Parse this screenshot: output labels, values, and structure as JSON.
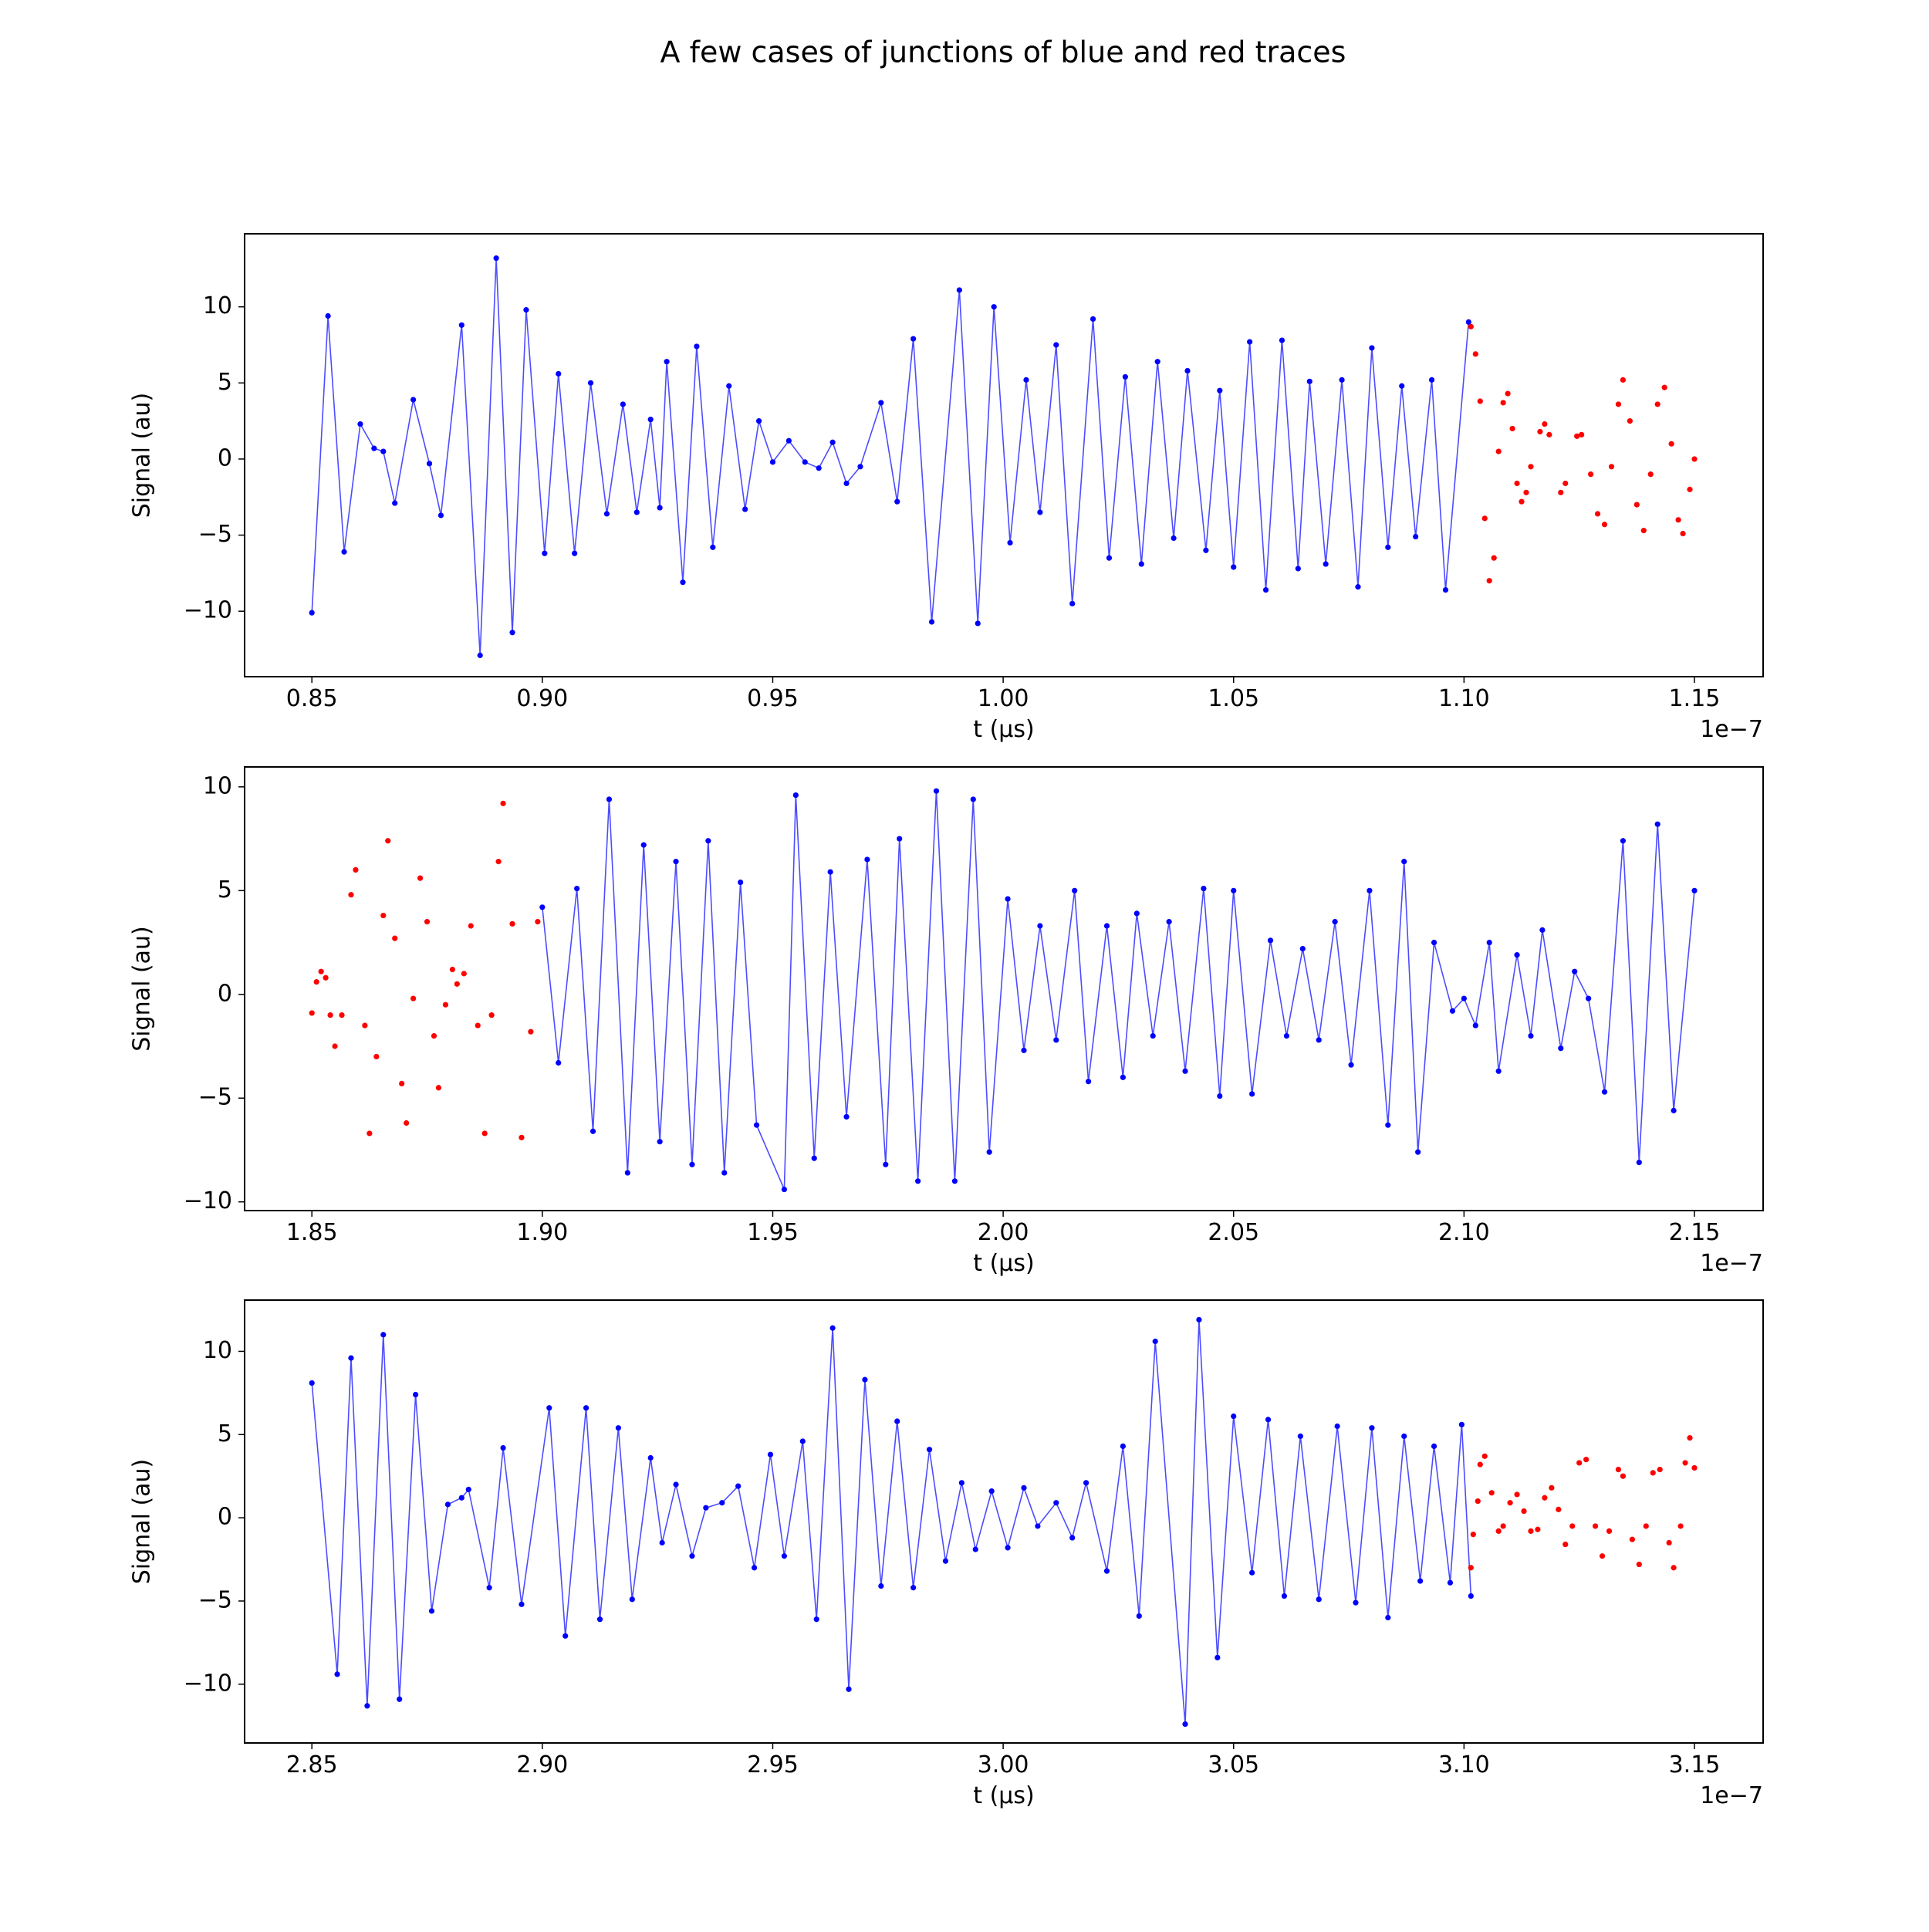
{
  "title": "A few cases of junctions of blue and red traces",
  "chart_data": [
    {
      "type": "line",
      "xlabel": "t (μs)",
      "ylabel": "Signal (au)",
      "x_offset_label": "1e−7",
      "xlim": [
        0.8354,
        1.1649
      ],
      "ylim": [
        -14.3,
        14.8
      ],
      "xticks": [
        0.85,
        {
          "value": 0.9,
          "label": "0.90"
        },
        0.95,
        {
          "value": 1,
          "label": "1.00"
        },
        1.05,
        {
          "value": 1.1,
          "label": "1.10"
        },
        1.15
      ],
      "yticks": [
        {
          "value": -10,
          "label": "−10"
        },
        {
          "value": -5,
          "label": "−5"
        },
        0,
        5,
        10
      ],
      "series": [
        {
          "color": "#0000ff",
          "mode": "lines+markers",
          "x": [
            0.85,
            0.8535,
            0.857,
            0.8605,
            0.8635,
            0.8655,
            0.868,
            0.872,
            0.8755,
            0.878,
            0.8825,
            0.8865,
            0.89,
            0.8935,
            0.8965,
            0.9005,
            0.9035,
            0.907,
            0.9105,
            0.914,
            0.9175,
            0.9205,
            0.9235,
            0.9255,
            0.927,
            0.9305,
            0.9335,
            0.937,
            0.9405,
            0.944,
            0.947,
            0.95,
            0.9535,
            0.957,
            0.96,
            0.963,
            0.966,
            0.969,
            0.9735,
            0.977,
            0.9805,
            0.9845,
            0.9905,
            0.9945,
            0.998,
            1.0015,
            1.005,
            1.008,
            1.0115,
            1.015,
            1.0195,
            1.023,
            1.0265,
            1.03,
            1.0335,
            1.037,
            1.04,
            1.044,
            1.047,
            1.05,
            1.0535,
            1.057,
            1.0605,
            1.064,
            1.0665,
            1.07,
            1.0735,
            1.077,
            1.08,
            1.0835,
            1.0865,
            1.0895,
            1.093,
            1.096,
            1.101
          ],
          "values": [
            -10.1,
            9.4,
            -6.1,
            2.3,
            0.7,
            0.5,
            -2.9,
            3.9,
            -0.3,
            -3.7,
            8.8,
            -12.9,
            13.2,
            -11.4,
            9.8,
            -6.2,
            5.6,
            -6.2,
            5.0,
            -3.6,
            3.6,
            -3.5,
            2.6,
            -3.2,
            6.4,
            -8.1,
            7.4,
            -5.8,
            4.8,
            -3.3,
            2.5,
            -0.2,
            1.2,
            -0.2,
            -0.6,
            1.1,
            -1.6,
            -0.5,
            3.7,
            -2.8,
            7.9,
            -10.7,
            11.1,
            -10.8,
            10.0,
            -5.5,
            5.2,
            -3.5,
            7.5,
            -9.5,
            9.2,
            -6.5,
            5.4,
            -6.9,
            6.4,
            -5.2,
            5.8,
            -6.0,
            4.5,
            -7.1,
            7.7,
            -8.6,
            7.8,
            -7.2,
            5.1,
            -6.9,
            5.2,
            -8.4,
            7.3,
            -5.8,
            4.8,
            -5.1,
            5.2,
            -8.6,
            9.0
          ]
        },
        {
          "color": "#ff0000",
          "mode": "markers",
          "x": [
            1.1015,
            1.1025,
            1.1035,
            1.1045,
            1.1055,
            1.1065,
            1.1075,
            1.1085,
            1.1095,
            1.1105,
            1.1115,
            1.1125,
            1.1135,
            1.1145,
            1.1165,
            1.1175,
            1.1185,
            1.121,
            1.122,
            1.1245,
            1.1255,
            1.1275,
            1.129,
            1.1305,
            1.132,
            1.1335,
            1.1345,
            1.136,
            1.1375,
            1.139,
            1.1405,
            1.142,
            1.1435,
            1.145,
            1.1465,
            1.1475,
            1.149,
            1.15
          ],
          "values": [
            8.7,
            6.9,
            3.8,
            -3.9,
            -8.0,
            -6.5,
            0.5,
            3.7,
            4.3,
            2.0,
            -1.6,
            -2.8,
            -2.2,
            -0.5,
            1.8,
            2.3,
            1.6,
            -2.2,
            -1.6,
            1.5,
            1.6,
            -1.0,
            -3.6,
            -4.3,
            -0.5,
            3.6,
            5.2,
            2.5,
            -3.0,
            -4.7,
            -1.0,
            3.6,
            4.7,
            1.0,
            -4.0,
            -4.9,
            -2.0,
            0.0
          ]
        }
      ]
    },
    {
      "type": "line",
      "xlabel": "t (μs)",
      "ylabel": "Signal (au)",
      "x_offset_label": "1e−7",
      "xlim": [
        1.8354,
        2.1649
      ],
      "ylim": [
        -10.42,
        10.96
      ],
      "xticks": [
        1.85,
        {
          "value": 1.9,
          "label": "1.90"
        },
        1.95,
        {
          "value": 2,
          "label": "2.00"
        },
        2.05,
        {
          "value": 2.1,
          "label": "2.10"
        },
        2.15
      ],
      "yticks": [
        {
          "value": -10,
          "label": "−10"
        },
        {
          "value": -5,
          "label": "−5"
        },
        0,
        5,
        10
      ],
      "series": [
        {
          "color": "#ff0000",
          "mode": "markers",
          "x": [
            1.85,
            1.851,
            1.852,
            1.853,
            1.854,
            1.855,
            1.8565,
            1.8585,
            1.8595,
            1.8615,
            1.8625,
            1.864,
            1.8655,
            1.8665,
            1.868,
            1.8695,
            1.8705,
            1.872,
            1.8735,
            1.875,
            1.8765,
            1.8775,
            1.879,
            1.8805,
            1.8815,
            1.883,
            1.8845,
            1.886,
            1.8875,
            1.889,
            1.8905,
            1.8915,
            1.8935,
            1.8955,
            1.8975,
            1.899
          ],
          "values": [
            -0.9,
            0.6,
            1.1,
            0.8,
            -1.0,
            -2.5,
            -1.0,
            4.8,
            6.0,
            -1.5,
            -6.7,
            -3.0,
            3.8,
            7.4,
            2.7,
            -4.3,
            -6.2,
            -0.2,
            5.6,
            3.5,
            -2.0,
            -4.5,
            -0.5,
            1.2,
            0.5,
            1.0,
            3.3,
            -1.5,
            -6.7,
            -1.0,
            6.4,
            9.2,
            3.4,
            -6.9,
            -1.8,
            3.5
          ]
        },
        {
          "color": "#0000ff",
          "mode": "lines+markers",
          "x": [
            1.9,
            1.9035,
            1.9075,
            1.911,
            1.9145,
            1.9185,
            1.922,
            1.9255,
            1.929,
            1.9325,
            1.936,
            1.9395,
            1.943,
            1.9465,
            1.9525,
            1.955,
            1.959,
            1.9625,
            1.966,
            1.9705,
            1.9745,
            1.9775,
            1.9815,
            1.9855,
            1.9895,
            1.9935,
            1.997,
            2.001,
            2.0045,
            2.008,
            2.0115,
            2.0155,
            2.0185,
            2.0225,
            2.026,
            2.029,
            2.0325,
            2.036,
            2.0395,
            2.0435,
            2.047,
            2.05,
            2.054,
            2.058,
            2.0615,
            2.065,
            2.0685,
            2.072,
            2.0755,
            2.0795,
            2.0835,
            2.087,
            2.09,
            2.0935,
            2.0975,
            2.1,
            2.1025,
            2.1055,
            2.1075,
            2.1115,
            2.1145,
            2.117,
            2.121,
            2.124,
            2.127,
            2.1305,
            2.1345,
            2.138,
            2.142,
            2.1455,
            2.15
          ],
          "values": [
            4.2,
            -3.3,
            5.1,
            -6.6,
            9.4,
            -8.6,
            7.2,
            -7.1,
            6.4,
            -8.2,
            7.4,
            -8.6,
            5.4,
            -6.3,
            -9.4,
            9.6,
            -7.9,
            5.9,
            -5.9,
            6.5,
            -8.2,
            7.5,
            -9.0,
            9.8,
            -9.0,
            9.4,
            -7.6,
            4.6,
            -2.7,
            3.3,
            -2.2,
            5.0,
            -4.2,
            3.3,
            -4.0,
            3.9,
            -2.0,
            3.5,
            -3.7,
            5.1,
            -4.9,
            5.0,
            -4.8,
            2.6,
            -2.0,
            2.2,
            -2.2,
            3.5,
            -3.4,
            5.0,
            -6.3,
            6.4,
            -7.6,
            2.5,
            -0.8,
            -0.2,
            -1.5,
            2.5,
            -3.7,
            1.9,
            -2.0,
            3.1,
            -2.6,
            1.1,
            -0.2,
            -4.7,
            7.4,
            -8.1,
            8.2,
            -5.6,
            5.0
          ]
        }
      ]
    },
    {
      "type": "line",
      "xlabel": "t (μs)",
      "ylabel": "Signal (au)",
      "x_offset_label": "1e−7",
      "xlim": [
        2.8354,
        3.1649
      ],
      "ylim": [
        -13.53,
        13.08
      ],
      "xticks": [
        2.85,
        {
          "value": 2.9,
          "label": "2.90"
        },
        2.95,
        {
          "value": 3,
          "label": "3.00"
        },
        3.05,
        {
          "value": 3.1,
          "label": "3.10"
        },
        3.15
      ],
      "yticks": [
        {
          "value": -10,
          "label": "−10"
        },
        {
          "value": -5,
          "label": "−5"
        },
        0,
        5,
        10
      ],
      "series": [
        {
          "color": "#0000ff",
          "mode": "lines+markers",
          "x": [
            2.85,
            2.8555,
            2.8585,
            2.862,
            2.8655,
            2.869,
            2.8725,
            2.876,
            2.8795,
            2.8825,
            2.884,
            2.8885,
            2.8915,
            2.8955,
            2.9015,
            2.905,
            2.9095,
            2.9125,
            2.9165,
            2.9195,
            2.9235,
            2.926,
            2.929,
            2.9325,
            2.9355,
            2.939,
            2.9425,
            2.946,
            2.9495,
            2.9525,
            2.9565,
            2.9595,
            2.963,
            2.9665,
            2.97,
            2.9735,
            2.977,
            2.9805,
            2.984,
            2.9875,
            2.991,
            2.994,
            2.9975,
            3.001,
            3.0045,
            3.0075,
            3.0115,
            3.015,
            3.018,
            3.0225,
            3.026,
            3.0295,
            3.033,
            3.0395,
            3.0425,
            3.0465,
            3.05,
            3.054,
            3.0575,
            3.061,
            3.0645,
            3.0685,
            3.0725,
            3.0765,
            3.08,
            3.0835,
            3.087,
            3.0905,
            3.0935,
            3.097,
            3.0995,
            3.1015
          ],
          "values": [
            8.1,
            -9.4,
            9.6,
            -11.3,
            11.0,
            -10.9,
            7.4,
            -5.6,
            0.8,
            1.2,
            1.7,
            -4.2,
            4.2,
            -5.2,
            6.6,
            -7.1,
            6.6,
            -6.1,
            5.4,
            -4.9,
            3.6,
            -1.5,
            2.0,
            -2.3,
            0.6,
            0.9,
            1.9,
            -3.0,
            3.8,
            -2.3,
            4.6,
            -6.1,
            11.4,
            -10.3,
            8.3,
            -4.1,
            5.8,
            -4.2,
            4.1,
            -2.6,
            2.1,
            -1.9,
            1.6,
            -1.8,
            1.8,
            -0.5,
            0.9,
            -1.2,
            2.1,
            -3.2,
            4.3,
            -5.9,
            10.6,
            -12.4,
            11.9,
            -8.4,
            6.1,
            -3.3,
            5.9,
            -4.7,
            4.9,
            -4.9,
            5.5,
            -5.1,
            5.4,
            -6.0,
            4.9,
            -3.8,
            4.3,
            -3.9,
            5.6,
            -4.7
          ]
        },
        {
          "color": "#ff0000",
          "mode": "markers",
          "x": [
            3.1015,
            3.102,
            3.103,
            3.1035,
            3.1045,
            3.106,
            3.1075,
            3.1085,
            3.11,
            3.1115,
            3.113,
            3.1145,
            3.116,
            3.1175,
            3.119,
            3.1205,
            3.122,
            3.1235,
            3.125,
            3.1265,
            3.1285,
            3.13,
            3.1315,
            3.1335,
            3.1345,
            3.1365,
            3.138,
            3.1395,
            3.141,
            3.1425,
            3.1445,
            3.1455,
            3.147,
            3.148,
            3.149,
            3.15
          ],
          "values": [
            -3.0,
            -1.0,
            1.0,
            3.2,
            3.7,
            1.5,
            -0.8,
            -0.5,
            0.9,
            1.4,
            0.4,
            -0.8,
            -0.7,
            1.2,
            1.8,
            0.5,
            -1.6,
            -0.5,
            3.3,
            3.5,
            -0.5,
            -2.3,
            -0.8,
            2.9,
            2.5,
            -1.3,
            -2.8,
            -0.5,
            2.7,
            2.9,
            -1.5,
            -3.0,
            -0.5,
            3.3,
            4.8,
            3.0
          ]
        }
      ]
    }
  ]
}
